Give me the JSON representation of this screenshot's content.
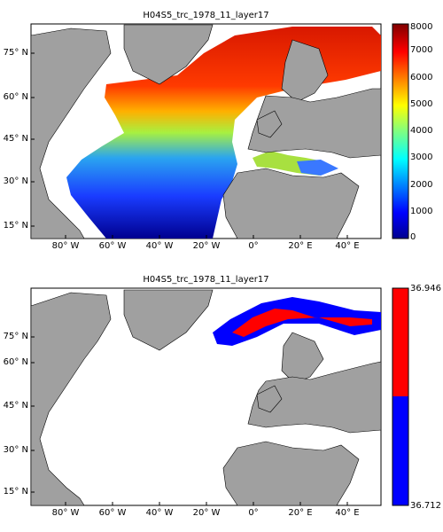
{
  "panels": [
    {
      "title": "H04S5_trc_1978_11_layer17",
      "lat_ticks": [
        "75° N",
        "60° N",
        "45° N",
        "30° N",
        "15° N"
      ],
      "lon_ticks": [
        "80° W",
        "60° W",
        "40° W",
        "20° W",
        "0°",
        "20° E",
        "40° E"
      ],
      "colorbar_ticks": [
        "8000",
        "7000",
        "6000",
        "5000",
        "4000",
        "3000",
        "2000",
        "1000",
        "0"
      ]
    },
    {
      "title": "H04S5_trc_1978_11_layer17",
      "lat_ticks": [
        "75° N",
        "60° N",
        "45° N",
        "30° N",
        "15° N"
      ],
      "lon_ticks": [
        "80° W",
        "60° W",
        "40° W",
        "20° W",
        "0°",
        "20° E",
        "40° E"
      ],
      "colorbar_ticks": [
        "36.946",
        "36.712"
      ]
    }
  ],
  "map_extent": {
    "lon": [
      -90,
      50
    ],
    "lat": [
      10,
      85
    ]
  },
  "colors": {
    "land": "#a0a0a0",
    "ocean": "#ffffff",
    "high": "#ff0000",
    "low": "#0000ff"
  }
}
